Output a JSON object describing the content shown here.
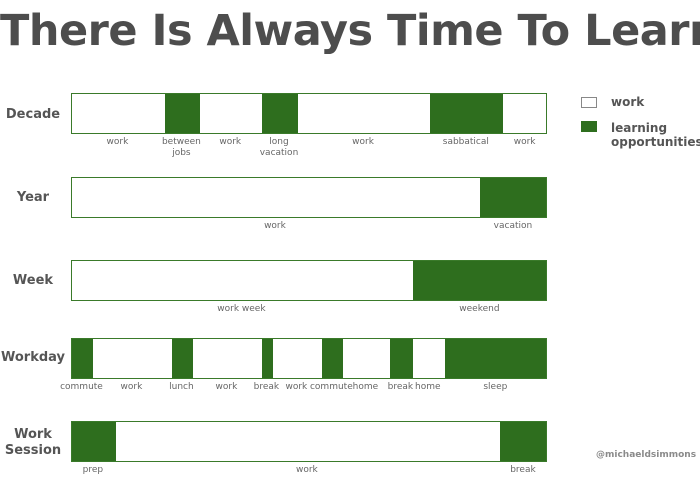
{
  "title": "There Is Always Time To Learn",
  "legend": {
    "work": "work",
    "learning": "learning\nopportunities"
  },
  "colors": {
    "learning": "#2e6e1e",
    "work": "#ffffff",
    "border": "#3a7a2a"
  },
  "watermark": "@michaeldsimmons",
  "rows": [
    {
      "label": "Decade",
      "segments": [
        {
          "type": "work",
          "fraction": 0.195
        },
        {
          "type": "learning",
          "fraction": 0.074
        },
        {
          "type": "work",
          "fraction": 0.131
        },
        {
          "type": "learning",
          "fraction": 0.074
        },
        {
          "type": "work",
          "fraction": 0.279
        },
        {
          "type": "learning",
          "fraction": 0.153
        },
        {
          "type": "work",
          "fraction": 0.094
        }
      ],
      "labels": [
        "work",
        "between\njobs",
        "work",
        "long\nvacation",
        "work",
        "sabbatical",
        "work"
      ]
    },
    {
      "label": "Year",
      "segments": [
        {
          "type": "work",
          "fraction": 0.857
        },
        {
          "type": "learning",
          "fraction": 0.143
        }
      ],
      "labels": [
        "work",
        "vacation"
      ]
    },
    {
      "label": "Week",
      "segments": [
        {
          "type": "work",
          "fraction": 0.716
        },
        {
          "type": "learning",
          "fraction": 0.284
        }
      ],
      "labels": [
        "work week",
        "weekend"
      ]
    },
    {
      "label": "Workday",
      "segments": [
        {
          "type": "learning",
          "fraction": 0.044
        },
        {
          "type": "work",
          "fraction": 0.166
        },
        {
          "type": "learning",
          "fraction": 0.044
        },
        {
          "type": "work",
          "fraction": 0.145
        },
        {
          "type": "learning",
          "fraction": 0.023
        },
        {
          "type": "work",
          "fraction": 0.103
        },
        {
          "type": "learning",
          "fraction": 0.044
        },
        {
          "type": "work",
          "fraction": 0.099
        },
        {
          "type": "learning",
          "fraction": 0.048
        },
        {
          "type": "work",
          "fraction": 0.067
        },
        {
          "type": "learning",
          "fraction": 0.217
        }
      ],
      "labels": [
        "commute",
        "work",
        "lunch",
        "work",
        "break",
        "work",
        "commute",
        "home",
        "break",
        "home",
        "sleep"
      ]
    },
    {
      "label": "Work\nSession",
      "segments": [
        {
          "type": "learning",
          "fraction": 0.092
        },
        {
          "type": "work",
          "fraction": 0.807
        },
        {
          "type": "learning",
          "fraction": 0.101
        }
      ],
      "labels": [
        "prep",
        "work",
        "break"
      ]
    }
  ]
}
